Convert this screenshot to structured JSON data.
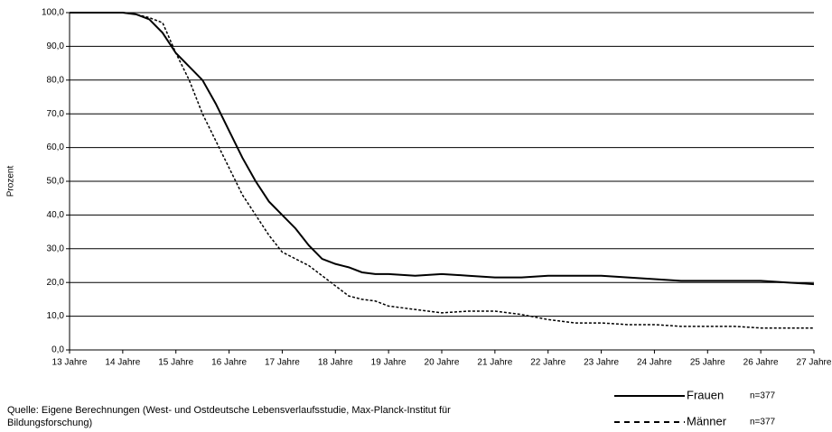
{
  "chart_data": {
    "type": "line",
    "y_label": "Prozent",
    "source": [
      "Quelle: Eigene Berechnungen (West- und Ostdeutsche Lebensverlaufsstudie, Max-Planck-Institut für",
      "Bildungsforschung)"
    ],
    "x": [
      13,
      13.5,
      14,
      14.25,
      14.5,
      14.75,
      15,
      15.25,
      15.5,
      15.75,
      16,
      16.25,
      16.5,
      16.75,
      17,
      17.25,
      17.5,
      17.75,
      18,
      18.25,
      18.5,
      18.75,
      19,
      19.5,
      20,
      20.5,
      21,
      21.5,
      22,
      22.5,
      23,
      23.5,
      24,
      24.5,
      25,
      25.5,
      26,
      26.5,
      27
    ],
    "series": [
      {
        "name": "Frauen",
        "note": "n=377",
        "color": "#000000",
        "style": "solid",
        "values": [
          100,
          100,
          100,
          99.5,
          98,
          94,
          88,
          84,
          80,
          73,
          65,
          57,
          50,
          44,
          40,
          36,
          31,
          27,
          25.5,
          24.5,
          23,
          22.5,
          22.5,
          22,
          22.5,
          22,
          21.5,
          21.5,
          22,
          22,
          22,
          21.5,
          21,
          20.5,
          20.5,
          20.5,
          20.5,
          20,
          19.5
        ]
      },
      {
        "name": "Männer",
        "note": "n=377",
        "color": "#000000",
        "style": "dashed",
        "values": [
          100,
          100,
          100,
          99.5,
          98.5,
          97,
          88,
          80,
          70,
          62,
          54,
          46,
          40,
          34,
          29,
          27,
          25,
          22,
          19,
          16,
          15,
          14.5,
          13,
          12,
          11,
          11.5,
          11.5,
          10.5,
          9,
          8,
          8,
          7.5,
          7.5,
          7,
          7,
          7,
          6.5,
          6.5,
          6.5
        ]
      }
    ],
    "xlim": [
      13,
      27
    ],
    "xticks": [
      {
        "value": 13,
        "label": "13 Jahre"
      },
      {
        "value": 14,
        "label": "14 Jahre"
      },
      {
        "value": 15,
        "label": "15 Jahre"
      },
      {
        "value": 16,
        "label": "16 Jahre"
      },
      {
        "value": 17,
        "label": "17 Jahre"
      },
      {
        "value": 18,
        "label": "18 Jahre"
      },
      {
        "value": 19,
        "label": "19 Jahre"
      },
      {
        "value": 20,
        "label": "20 Jahre"
      },
      {
        "value": 21,
        "label": "21 Jahre"
      },
      {
        "value": 22,
        "label": "22 Jahre"
      },
      {
        "value": 23,
        "label": "23 Jahre"
      },
      {
        "value": 24,
        "label": "24 Jahre"
      },
      {
        "value": 25,
        "label": "25 Jahre"
      },
      {
        "value": 26,
        "label": "26 Jahre"
      },
      {
        "value": 27,
        "label": "27 Jahre"
      }
    ],
    "ylim": [
      0,
      100
    ],
    "yticks": [
      {
        "value": 0,
        "label": "0,0"
      },
      {
        "value": 10,
        "label": "10,0"
      },
      {
        "value": 20,
        "label": "20,0"
      },
      {
        "value": 30,
        "label": "30,0"
      },
      {
        "value": 40,
        "label": "40,0"
      },
      {
        "value": 50,
        "label": "50,0"
      },
      {
        "value": 60,
        "label": "60,0"
      },
      {
        "value": 70,
        "label": "70,0"
      },
      {
        "value": 80,
        "label": "80,0"
      },
      {
        "value": 90,
        "label": "90,0"
      },
      {
        "value": 100,
        "label": "100,0"
      }
    ],
    "grid": true
  }
}
